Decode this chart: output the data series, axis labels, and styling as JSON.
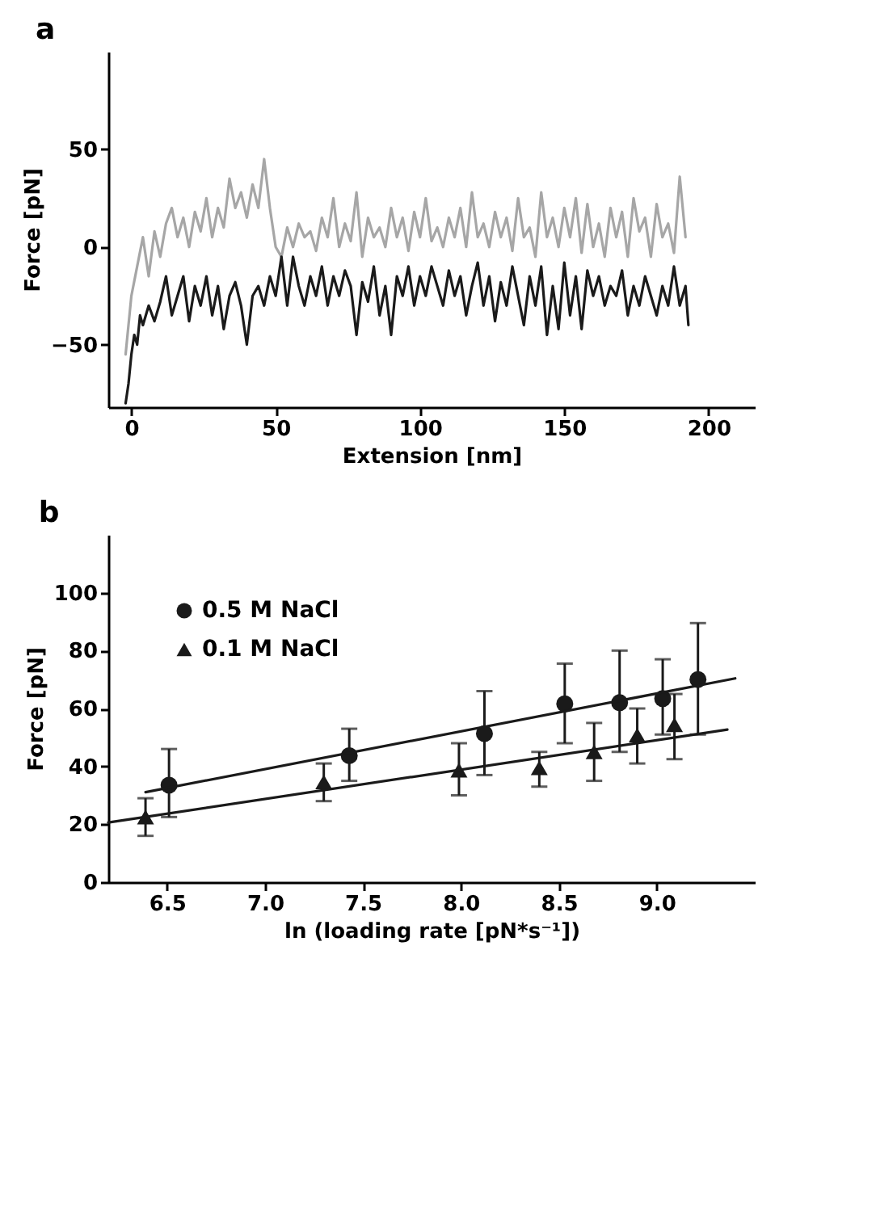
{
  "chart_data": [
    {
      "type": "line",
      "title": "a",
      "xlabel": "Extension [nm]",
      "ylabel": "Force [pN]",
      "xlim": [
        -8,
        216
      ],
      "ylim": [
        -82,
        100
      ],
      "xticks": [
        0,
        50,
        100,
        150,
        200
      ],
      "yticks": [
        -50,
        0,
        50
      ],
      "grid": false,
      "series": [
        {
          "color": "#a6a6a6",
          "x": [
            -2,
            0,
            2,
            4,
            6,
            8,
            10,
            12,
            14,
            16,
            18,
            20,
            22,
            24,
            26,
            28,
            30,
            32,
            34,
            36,
            38,
            40,
            42,
            44,
            46,
            48,
            50,
            52,
            54,
            56,
            58,
            60,
            62,
            64,
            66,
            68,
            70,
            72,
            74,
            76,
            78,
            80,
            82,
            84,
            86,
            88,
            90,
            92,
            94,
            96,
            98,
            100,
            102,
            104,
            106,
            108,
            110,
            112,
            114,
            116,
            118,
            120,
            122,
            124,
            126,
            128,
            130,
            132,
            134,
            136,
            138,
            140,
            142,
            144,
            146,
            148,
            150,
            152,
            154,
            156,
            158,
            160,
            162,
            164,
            166,
            168,
            170,
            172,
            174,
            176,
            178,
            180,
            182,
            184,
            186,
            188,
            190,
            192
          ],
          "values": [
            -55,
            -25,
            -10,
            5,
            -15,
            8,
            -5,
            12,
            20,
            5,
            15,
            0,
            18,
            8,
            25,
            5,
            20,
            10,
            35,
            20,
            28,
            15,
            32,
            20,
            45,
            20,
            0,
            -5,
            10,
            0,
            12,
            5,
            8,
            -2,
            15,
            5,
            25,
            0,
            12,
            3,
            28,
            -5,
            15,
            5,
            10,
            0,
            20,
            5,
            15,
            -2,
            18,
            5,
            25,
            3,
            10,
            0,
            15,
            5,
            20,
            0,
            28,
            5,
            12,
            0,
            18,
            5,
            15,
            -2,
            25,
            5,
            10,
            -5,
            28,
            5,
            15,
            0,
            20,
            5,
            25,
            -3,
            22,
            0,
            12,
            -5,
            20,
            5,
            18,
            -5,
            25,
            8,
            15,
            -5,
            22,
            5,
            12,
            -3,
            36,
            5
          ]
        },
        {
          "color": "#1a1a1a",
          "x": [
            -2,
            -1,
            0,
            1,
            2,
            3,
            4,
            6,
            8,
            10,
            12,
            14,
            16,
            18,
            20,
            22,
            24,
            26,
            28,
            30,
            32,
            34,
            36,
            38,
            40,
            42,
            44,
            46,
            48,
            50,
            52,
            54,
            56,
            58,
            60,
            62,
            64,
            66,
            68,
            70,
            72,
            74,
            76,
            78,
            80,
            82,
            84,
            86,
            88,
            90,
            92,
            94,
            96,
            98,
            100,
            102,
            104,
            106,
            108,
            110,
            112,
            114,
            116,
            118,
            120,
            122,
            124,
            126,
            128,
            130,
            132,
            134,
            136,
            138,
            140,
            142,
            144,
            146,
            148,
            150,
            152,
            154,
            156,
            158,
            160,
            162,
            164,
            166,
            168,
            170,
            172,
            174,
            176,
            178,
            180,
            182,
            184,
            186,
            188,
            190,
            192,
            193
          ],
          "values": [
            -80,
            -70,
            -55,
            -45,
            -50,
            -35,
            -40,
            -30,
            -38,
            -28,
            -15,
            -35,
            -25,
            -15,
            -38,
            -20,
            -30,
            -15,
            -35,
            -20,
            -42,
            -25,
            -18,
            -30,
            -50,
            -25,
            -20,
            -30,
            -15,
            -25,
            -5,
            -30,
            -5,
            -20,
            -30,
            -15,
            -25,
            -10,
            -30,
            -15,
            -25,
            -12,
            -20,
            -45,
            -18,
            -28,
            -10,
            -35,
            -20,
            -45,
            -15,
            -25,
            -10,
            -30,
            -15,
            -25,
            -10,
            -20,
            -30,
            -12,
            -25,
            -15,
            -35,
            -20,
            -8,
            -30,
            -15,
            -38,
            -18,
            -30,
            -10,
            -25,
            -40,
            -15,
            -30,
            -10,
            -45,
            -20,
            -42,
            -8,
            -35,
            -15,
            -42,
            -12,
            -25,
            -15,
            -30,
            -20,
            -25,
            -12,
            -35,
            -20,
            -30,
            -15,
            -25,
            -35,
            -20,
            -30,
            -10,
            -30,
            -20,
            -40
          ]
        }
      ]
    },
    {
      "type": "scatter",
      "title": "b",
      "xlabel": "ln (loading rate [pN*s⁻¹])",
      "ylabel": "Force [pN]",
      "xlim": [
        6.2,
        9.5
      ],
      "ylim": [
        0,
        120
      ],
      "xticks": [
        6.5,
        {
          "value": 7,
          "label": "7.0"
        },
        7.5,
        {
          "value": 8,
          "label": "8.0"
        },
        8.5,
        {
          "value": 9,
          "label": "9.0"
        }
      ],
      "yticks": [
        0,
        20,
        40,
        60,
        80,
        100
      ],
      "grid": false,
      "legend": "top left",
      "series": [
        {
          "name": "0.5 M NaCl",
          "color": "#1a1a1a",
          "marker": "circle",
          "x": [
            6.51,
            7.43,
            8.12,
            8.53,
            8.81,
            9.03,
            9.21
          ],
          "values": [
            33.5,
            43.7,
            51.3,
            61.6,
            62,
            63.4,
            70
          ],
          "errors": [
            [
              22.5,
              46
            ],
            [
              35,
              53
            ],
            [
              37,
              66
            ],
            [
              48,
              75.5
            ],
            [
              45,
              80
            ],
            [
              51,
              77
            ],
            [
              51,
              89.5
            ]
          ]
        },
        {
          "name": "0.1 M NaCl",
          "color": "#1a1a1a",
          "marker": "triangle",
          "x": [
            6.39,
            7.3,
            7.99,
            8.4,
            8.68,
            8.9,
            9.09
          ],
          "values": [
            22.5,
            34.6,
            38.7,
            39.5,
            45,
            50.8,
            54.4
          ],
          "errors": [
            [
              16,
              29
            ],
            [
              28,
              41
            ],
            [
              30,
              48
            ],
            [
              33,
              45
            ],
            [
              35,
              55
            ],
            [
              41,
              60
            ],
            [
              42.5,
              65
            ]
          ]
        },
        {
          "type": "line",
          "color": "#1a1a1a",
          "x": [
            6.39,
            9.4
          ],
          "values": [
            31.1,
            70.4
          ]
        },
        {
          "type": "line",
          "color": "#1a1a1a",
          "x": [
            6.2,
            9.36
          ],
          "values": [
            20.6,
            52.7
          ]
        }
      ]
    }
  ]
}
